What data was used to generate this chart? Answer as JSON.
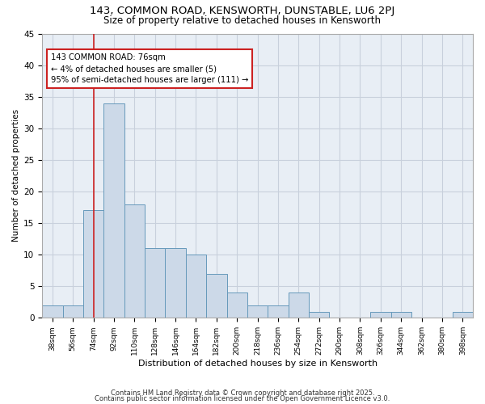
{
  "title1": "143, COMMON ROAD, KENSWORTH, DUNSTABLE, LU6 2PJ",
  "title2": "Size of property relative to detached houses in Kensworth",
  "xlabel": "Distribution of detached houses by size in Kensworth",
  "ylabel": "Number of detached properties",
  "categories": [
    "38sqm",
    "56sqm",
    "74sqm",
    "92sqm",
    "110sqm",
    "128sqm",
    "146sqm",
    "164sqm",
    "182sqm",
    "200sqm",
    "218sqm",
    "236sqm",
    "254sqm",
    "272sqm",
    "290sqm",
    "308sqm",
    "326sqm",
    "344sqm",
    "362sqm",
    "380sqm",
    "398sqm"
  ],
  "values": [
    2,
    2,
    17,
    34,
    18,
    11,
    11,
    10,
    7,
    4,
    2,
    2,
    4,
    1,
    0,
    0,
    1,
    1,
    0,
    0,
    1
  ],
  "bar_color": "#ccd9e8",
  "bar_edge_color": "#6699bb",
  "grid_color": "#c8d0dc",
  "bg_color": "#e8eef5",
  "vline_x_idx": 2,
  "vline_color": "#cc2222",
  "annotation_text": "143 COMMON ROAD: 76sqm\n← 4% of detached houses are smaller (5)\n95% of semi-detached houses are larger (111) →",
  "annotation_box_color": "#cc2222",
  "footer1": "Contains HM Land Registry data © Crown copyright and database right 2025.",
  "footer2": "Contains public sector information licensed under the Open Government Licence v3.0.",
  "ylim": [
    0,
    45
  ],
  "yticks": [
    0,
    5,
    10,
    15,
    20,
    25,
    30,
    35,
    40,
    45
  ]
}
